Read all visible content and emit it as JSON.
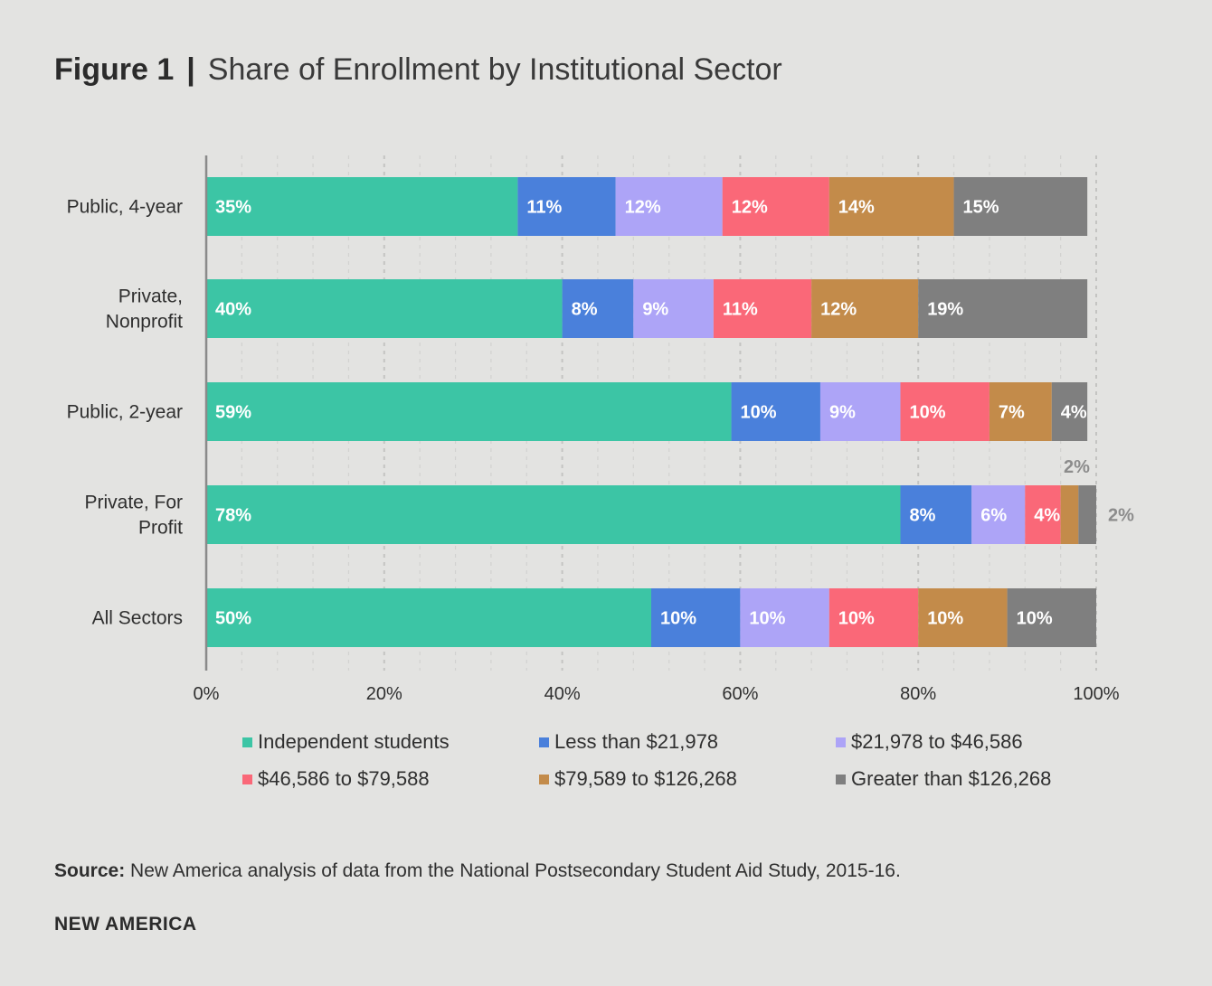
{
  "title": {
    "figure": "Figure 1",
    "separator": "|",
    "text": "Share of Enrollment by Institutional Sector"
  },
  "chart_data": {
    "type": "bar",
    "orientation": "horizontal",
    "stacked": true,
    "categories": [
      [
        "Public, 4-year"
      ],
      [
        "Private,",
        "Nonprofit"
      ],
      [
        "Public, 2-year"
      ],
      [
        "Private, For",
        "Profit"
      ],
      [
        "All Sectors"
      ]
    ],
    "series": [
      {
        "name": "Independent students",
        "color": "#3cc5a5",
        "values": [
          35,
          40,
          59,
          78,
          50
        ],
        "labels": [
          "35%",
          "40%",
          "59%",
          "78%",
          "50%"
        ]
      },
      {
        "name": "Less than $21,978",
        "color": "#4a80db",
        "values": [
          11,
          8,
          10,
          8,
          10
        ],
        "labels": [
          "11%",
          "8%",
          "10%",
          "8%",
          "10%"
        ]
      },
      {
        "name": "$21,978 to $46,586",
        "color": "#ada4f7",
        "values": [
          12,
          9,
          9,
          6,
          10
        ],
        "labels": [
          "12%",
          "9%",
          "9%",
          "6%",
          "10%"
        ]
      },
      {
        "name": "$46,586 to $79,588",
        "color": "#fa6878",
        "values": [
          12,
          11,
          10,
          4,
          10
        ],
        "labels": [
          "12%",
          "11%",
          "10%",
          "4%",
          "10%"
        ]
      },
      {
        "name": "$79,589 to $126,268",
        "color": "#c38b4a",
        "values": [
          14,
          12,
          7,
          2,
          10
        ],
        "labels": [
          "14%",
          "12%",
          "7%",
          "2%",
          "10%"
        ]
      },
      {
        "name": "Greater than $126,268",
        "color": "#7f7f7f",
        "values": [
          15,
          19,
          4,
          2,
          10
        ],
        "labels": [
          "15%",
          "19%",
          "4%",
          "2%",
          "10%"
        ]
      }
    ],
    "xlim": [
      0,
      100
    ],
    "xticks": [
      "0%",
      "20%",
      "40%",
      "60%",
      "80%",
      "100%"
    ],
    "outside_labels": [
      {
        "category_index": 3,
        "series_index": 4,
        "text": "2%",
        "placement": "above"
      },
      {
        "category_index": 3,
        "series_index": 5,
        "text": "2%",
        "placement": "right"
      }
    ],
    "grid": true,
    "legend_position": "bottom"
  },
  "source": {
    "label": "Source:",
    "text": "New America analysis of data from the National Postsecondary Student Aid Study, 2015-16."
  },
  "brand": "NEW AMERICA"
}
